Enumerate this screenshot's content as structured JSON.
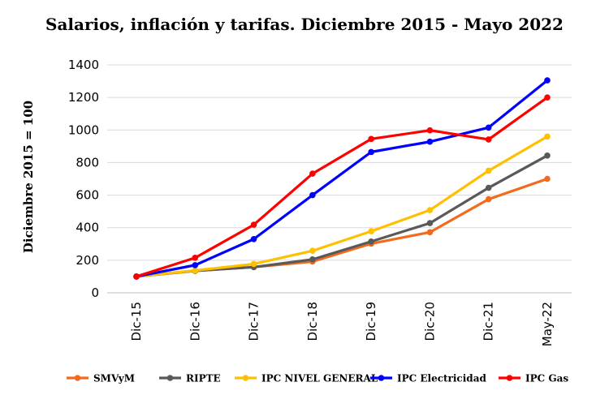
{
  "chart_data": {
    "type": "line",
    "title": "Salarios, inflación y tarifas. Diciembre 2015 - Mayo 2022",
    "xlabel": "",
    "ylabel": "Diciembre 2015 = 100",
    "ylim": [
      0,
      1400
    ],
    "yticks": [
      0,
      200,
      400,
      600,
      800,
      1000,
      1200,
      1400
    ],
    "grid": true,
    "legend_position": "bottom",
    "categories": [
      "Dic-15",
      "Dic-16",
      "Dic-17",
      "Dic-18",
      "Dic-19",
      "Dic-20",
      "Dic-21",
      "May-22"
    ],
    "series": [
      {
        "name": "SMVyM",
        "color": "#f26b1d",
        "values": [
          100,
          135,
          158,
          192,
          302,
          372,
          575,
          700
        ]
      },
      {
        "name": "RIPTE",
        "color": "#595959",
        "values": [
          100,
          135,
          158,
          205,
          315,
          428,
          645,
          843
        ]
      },
      {
        "name": "IPC NIVEL GENERAL",
        "color": "#ffc000",
        "values": [
          100,
          137,
          177,
          258,
          378,
          508,
          750,
          960
        ]
      },
      {
        "name": "IPC Electricidad",
        "color": "#0000ff",
        "values": [
          100,
          170,
          330,
          600,
          865,
          928,
          1015,
          1305
        ]
      },
      {
        "name": "IPC Gas",
        "color": "#ff0000",
        "values": [
          100,
          215,
          418,
          732,
          945,
          998,
          942,
          1200
        ]
      }
    ]
  }
}
